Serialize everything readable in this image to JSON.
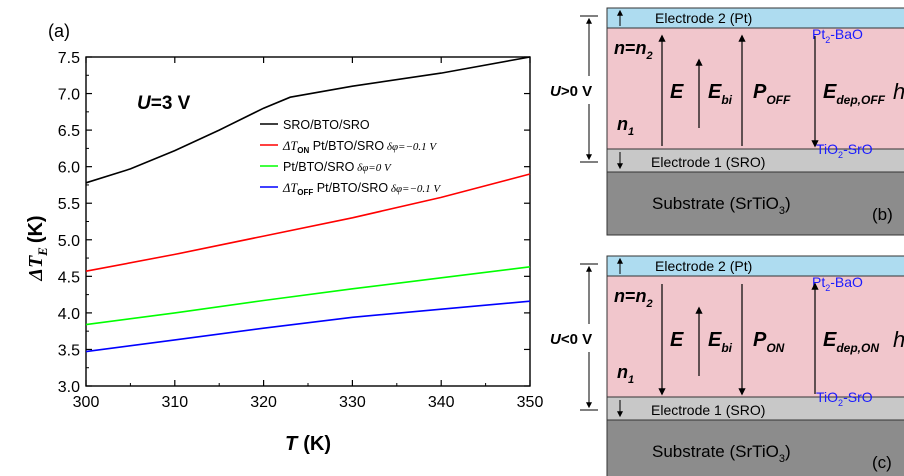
{
  "panel_label_a": "(a)",
  "panel_label_b": "(b)",
  "panel_label_c": "(c)",
  "chart_data": {
    "type": "line",
    "xlim": [
      300,
      350
    ],
    "ylim": [
      3.0,
      7.5
    ],
    "xticks": [
      "300",
      "310",
      "320",
      "330",
      "340",
      "350"
    ],
    "yticks": [
      "3.0",
      "3.5",
      "4.0",
      "4.5",
      "5.0",
      "5.5",
      "6.0",
      "6.5",
      "7.0",
      "7.5"
    ],
    "xlabel": {
      "var": "T",
      "unit": "(K)"
    },
    "ylabel": {
      "var": "ΔT",
      "sub": "E",
      "unit": "(K)"
    },
    "annotation": {
      "var": "U",
      "rest": "=3 V"
    },
    "legend_position": "top-center",
    "grid": false,
    "series": [
      {
        "name": "SRO/BTO/SRO",
        "label_parts": {
          "pre": "",
          "sub": "",
          "mid": "SRO/BTO/SRO",
          "extra": ""
        },
        "color": "#000000",
        "x": [
          300,
          305,
          310,
          315,
          320,
          323,
          330,
          340,
          350
        ],
        "y": [
          5.78,
          5.97,
          6.22,
          6.5,
          6.8,
          6.95,
          7.1,
          7.28,
          7.5
        ]
      },
      {
        "name": "ΔT_ON Pt/BTO/SRO δφ=−0.1 V",
        "label_parts": {
          "pre": "ΔT",
          "sub": "ON",
          "mid": "Pt/BTO/SRO",
          "extra": "δφ=−0.1 V"
        },
        "color": "#ff0000",
        "x": [
          300,
          310,
          320,
          330,
          340,
          350
        ],
        "y": [
          4.57,
          4.8,
          5.05,
          5.3,
          5.58,
          5.9
        ]
      },
      {
        "name": "Pt/BTO/SRO δφ=0 V",
        "label_parts": {
          "pre": "",
          "sub": "",
          "mid": "Pt/BTO/SRO",
          "extra": "δφ=0 V"
        },
        "color": "#00ff00",
        "x": [
          300,
          310,
          320,
          330,
          340,
          350
        ],
        "y": [
          3.84,
          4.0,
          4.17,
          4.33,
          4.48,
          4.63
        ]
      },
      {
        "name": "ΔT_OFF Pt/BTO/SRO δφ=−0.1 V",
        "label_parts": {
          "pre": "ΔT",
          "sub": "OFF",
          "mid": "Pt/BTO/SRO",
          "extra": "δφ=−0.1 V"
        },
        "color": "#0000ff",
        "x": [
          300,
          310,
          320,
          330,
          340,
          350
        ],
        "y": [
          3.47,
          3.63,
          3.79,
          3.94,
          4.05,
          4.16
        ]
      }
    ]
  },
  "diagrams": [
    {
      "id": "b",
      "electrode_top": "Electrode 2 (Pt)",
      "interface_top": {
        "a": "Pt",
        "sub": "2",
        "b": "-BaO"
      },
      "voltage": {
        "var": "U",
        "rest": ">0 V"
      },
      "n_top": {
        "a": "n",
        "eq": "=",
        "b": "n",
        "sub": "2"
      },
      "n_bottom": {
        "a": "n",
        "sub": "1"
      },
      "labels": [
        {
          "main": "E",
          "sub": ""
        },
        {
          "main": "E",
          "sub": "bi"
        },
        {
          "main": "P",
          "sub": "OFF"
        },
        {
          "main": "E",
          "sub": "dep,OFF"
        }
      ],
      "h_label": "h",
      "interface_bottom": {
        "a": "TiO",
        "sub": "2",
        "b": "-SrO"
      },
      "electrode_bottom": "Electrode 1 (SRO)",
      "substrate": {
        "a": "Substrate (SrTiO",
        "sub": "3",
        "b": ")"
      }
    },
    {
      "id": "c",
      "electrode_top": "Electrode 2 (Pt)",
      "interface_top": {
        "a": "Pt",
        "sub": "2",
        "b": "-BaO"
      },
      "voltage": {
        "var": "U",
        "rest": "<0 V"
      },
      "n_top": {
        "a": "n",
        "eq": "=",
        "b": "n",
        "sub": "2"
      },
      "n_bottom": {
        "a": "n",
        "sub": "1"
      },
      "labels": [
        {
          "main": "E",
          "sub": ""
        },
        {
          "main": "E",
          "sub": "bi"
        },
        {
          "main": "P",
          "sub": "ON"
        },
        {
          "main": "E",
          "sub": "dep,ON"
        }
      ],
      "h_label": "h",
      "interface_bottom": {
        "a": "TiO",
        "sub": "2",
        "b": "-SrO"
      },
      "electrode_bottom": "Electrode 1 (SRO)",
      "substrate": {
        "a": "Substrate (SrTiO",
        "sub": "3",
        "b": ")"
      }
    }
  ]
}
